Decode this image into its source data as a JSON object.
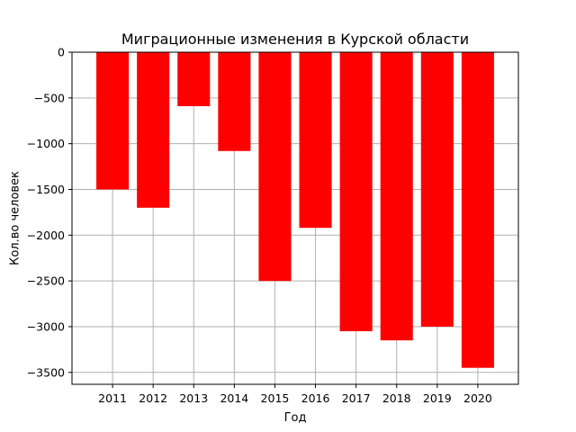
{
  "chart_data": {
    "type": "bar",
    "title": "Миграционные изменения в Курской области",
    "xlabel": "Год",
    "ylabel": "Кол.во человек",
    "categories": [
      "2011",
      "2012",
      "2013",
      "2014",
      "2015",
      "2016",
      "2017",
      "2018",
      "2019",
      "2020"
    ],
    "values": [
      -1500,
      -1700,
      -590,
      -1080,
      -2500,
      -1920,
      -3050,
      -3150,
      -3000,
      -3450
    ],
    "ylim": [
      -3630,
      0
    ],
    "yticks": [
      0,
      -500,
      -1000,
      -1500,
      -2000,
      -2500,
      -3000,
      -3500
    ],
    "ytick_labels": [
      "0",
      "−500",
      "−1000",
      "−1500",
      "−2000",
      "−2500",
      "−3000",
      "−3500"
    ],
    "grid": true,
    "bar_color": "#ff0000"
  }
}
